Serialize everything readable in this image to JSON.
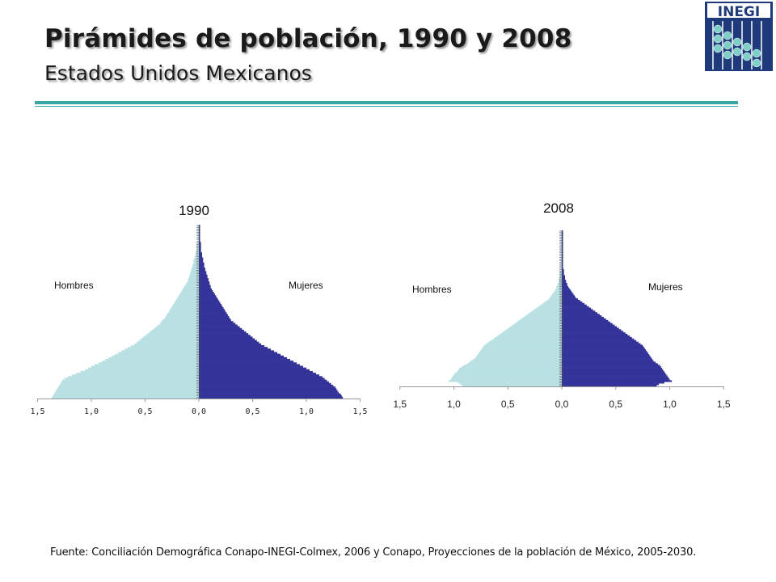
{
  "header": {
    "title": "Pirámides de población, 1990 y 2008",
    "subtitle": "Estados Unidos Mexicanos",
    "logo_text": "INEGI"
  },
  "source": "Fuente: Conciliación Demográfica Conapo-INEGI-Colmex, 2006 y Conapo, Proyecciones de la población de México, 2005-2030.",
  "colors": {
    "hombres": "#b9e0e3",
    "mujeres": "#333399",
    "rule": "#3aa6a6",
    "logo_bg": "#1e3a7a"
  },
  "chart_data": [
    {
      "type": "bar",
      "orientation": "horizontal-population-pyramid",
      "title": "1990",
      "xlim": [
        -1.5,
        1.5
      ],
      "x_ticks": [
        "1,5",
        "1,0",
        "0,5",
        "0,0",
        "0,5",
        "1,0",
        "1,5"
      ],
      "series": [
        {
          "name": "Hombres",
          "description": "left side, by single year of age 0 (bottom) to 100 (top)",
          "values": [
            1.37,
            1.36,
            1.35,
            1.34,
            1.33,
            1.32,
            1.31,
            1.3,
            1.29,
            1.28,
            1.27,
            1.25,
            1.22,
            1.18,
            1.14,
            1.1,
            1.06,
            1.03,
            1.0,
            0.97,
            0.93,
            0.9,
            0.87,
            0.84,
            0.81,
            0.78,
            0.75,
            0.72,
            0.69,
            0.66,
            0.63,
            0.6,
            0.58,
            0.56,
            0.54,
            0.52,
            0.5,
            0.48,
            0.46,
            0.44,
            0.42,
            0.4,
            0.38,
            0.36,
            0.35,
            0.34,
            0.32,
            0.31,
            0.3,
            0.29,
            0.28,
            0.27,
            0.26,
            0.25,
            0.24,
            0.23,
            0.22,
            0.21,
            0.2,
            0.19,
            0.18,
            0.17,
            0.16,
            0.15,
            0.14,
            0.13,
            0.12,
            0.11,
            0.1,
            0.1,
            0.09,
            0.09,
            0.08,
            0.08,
            0.07,
            0.07,
            0.06,
            0.06,
            0.05,
            0.05,
            0.05,
            0.04,
            0.04,
            0.03,
            0.03,
            0.03,
            0.02,
            0.02,
            0.02,
            0.02,
            0.01,
            0.01,
            0.01,
            0.01,
            0.01,
            0.01,
            0.01,
            0.01,
            0.01,
            0.01,
            0.01
          ]
        },
        {
          "name": "Mujeres",
          "description": "right side, by single year of age 0 (bottom) to 100 (top)",
          "values": [
            1.34,
            1.33,
            1.32,
            1.3,
            1.29,
            1.28,
            1.27,
            1.25,
            1.23,
            1.21,
            1.19,
            1.17,
            1.15,
            1.12,
            1.09,
            1.06,
            1.03,
            1.0,
            0.97,
            0.94,
            0.91,
            0.88,
            0.85,
            0.82,
            0.79,
            0.76,
            0.73,
            0.7,
            0.67,
            0.64,
            0.61,
            0.58,
            0.56,
            0.54,
            0.52,
            0.5,
            0.48,
            0.46,
            0.44,
            0.42,
            0.4,
            0.38,
            0.36,
            0.34,
            0.32,
            0.3,
            0.29,
            0.28,
            0.27,
            0.26,
            0.25,
            0.24,
            0.23,
            0.22,
            0.21,
            0.2,
            0.19,
            0.18,
            0.17,
            0.16,
            0.15,
            0.14,
            0.13,
            0.12,
            0.11,
            0.11,
            0.1,
            0.1,
            0.09,
            0.09,
            0.08,
            0.08,
            0.07,
            0.07,
            0.06,
            0.06,
            0.05,
            0.05,
            0.05,
            0.04,
            0.04,
            0.04,
            0.03,
            0.03,
            0.03,
            0.02,
            0.02,
            0.02,
            0.02,
            0.02,
            0.02,
            0.01,
            0.01,
            0.01,
            0.01,
            0.01,
            0.01,
            0.01,
            0.01,
            0.01,
            0.01
          ]
        }
      ],
      "annotations": [
        "Hombres",
        "Mujeres"
      ]
    },
    {
      "type": "bar",
      "orientation": "horizontal-population-pyramid",
      "title": "2008",
      "xlim": [
        -1.5,
        1.5
      ],
      "x_ticks": [
        "1,5",
        "1,0",
        "0,5",
        "0,0",
        "0,5",
        "1,0",
        "1,5"
      ],
      "series": [
        {
          "name": "Hombres",
          "description": "left side, by single year of age 0 (bottom) to 100 (top)",
          "values": [
            0.92,
            0.94,
            0.96,
            1.05,
            1.03,
            1.02,
            1.01,
            1.0,
            0.99,
            0.97,
            0.96,
            0.95,
            0.93,
            0.91,
            0.88,
            0.86,
            0.84,
            0.82,
            0.8,
            0.79,
            0.78,
            0.77,
            0.76,
            0.75,
            0.74,
            0.73,
            0.72,
            0.7,
            0.68,
            0.66,
            0.64,
            0.62,
            0.6,
            0.58,
            0.56,
            0.54,
            0.52,
            0.5,
            0.48,
            0.46,
            0.44,
            0.42,
            0.4,
            0.38,
            0.36,
            0.34,
            0.32,
            0.3,
            0.28,
            0.26,
            0.24,
            0.22,
            0.2,
            0.18,
            0.16,
            0.14,
            0.12,
            0.11,
            0.1,
            0.09,
            0.08,
            0.07,
            0.06,
            0.05,
            0.05,
            0.04,
            0.04,
            0.03,
            0.03,
            0.03,
            0.02,
            0.02,
            0.02,
            0.02,
            0.02,
            0.01,
            0.01,
            0.01,
            0.01,
            0.01,
            0.01,
            0.01,
            0.01,
            0.01,
            0.01,
            0.01,
            0.01,
            0.01,
            0.01,
            0.01,
            0.01,
            0.01,
            0.01,
            0.01,
            0.01,
            0.01,
            0.01,
            0.01,
            0.01,
            0.01,
            0.01
          ]
        },
        {
          "name": "Mujeres",
          "description": "right side, by single year of age 0 (bottom) to 100 (top)",
          "values": [
            0.88,
            0.9,
            0.95,
            1.02,
            1.0,
            0.99,
            0.98,
            0.97,
            0.96,
            0.95,
            0.94,
            0.93,
            0.92,
            0.91,
            0.89,
            0.87,
            0.85,
            0.84,
            0.83,
            0.82,
            0.81,
            0.8,
            0.79,
            0.78,
            0.77,
            0.76,
            0.75,
            0.73,
            0.71,
            0.69,
            0.67,
            0.65,
            0.63,
            0.61,
            0.59,
            0.57,
            0.55,
            0.53,
            0.51,
            0.49,
            0.47,
            0.45,
            0.43,
            0.41,
            0.39,
            0.37,
            0.35,
            0.33,
            0.31,
            0.29,
            0.27,
            0.25,
            0.23,
            0.21,
            0.19,
            0.17,
            0.15,
            0.13,
            0.12,
            0.11,
            0.1,
            0.09,
            0.08,
            0.07,
            0.06,
            0.05,
            0.05,
            0.04,
            0.04,
            0.03,
            0.03,
            0.03,
            0.02,
            0.02,
            0.02,
            0.02,
            0.01,
            0.01,
            0.01,
            0.01,
            0.01,
            0.01,
            0.01,
            0.01,
            0.01,
            0.01,
            0.01,
            0.01,
            0.01,
            0.01,
            0.01,
            0.01,
            0.01,
            0.01,
            0.01,
            0.01,
            0.01,
            0.01,
            0.01,
            0.01,
            0.01
          ]
        }
      ],
      "annotations": [
        "Hombres",
        "Mujeres"
      ]
    }
  ]
}
